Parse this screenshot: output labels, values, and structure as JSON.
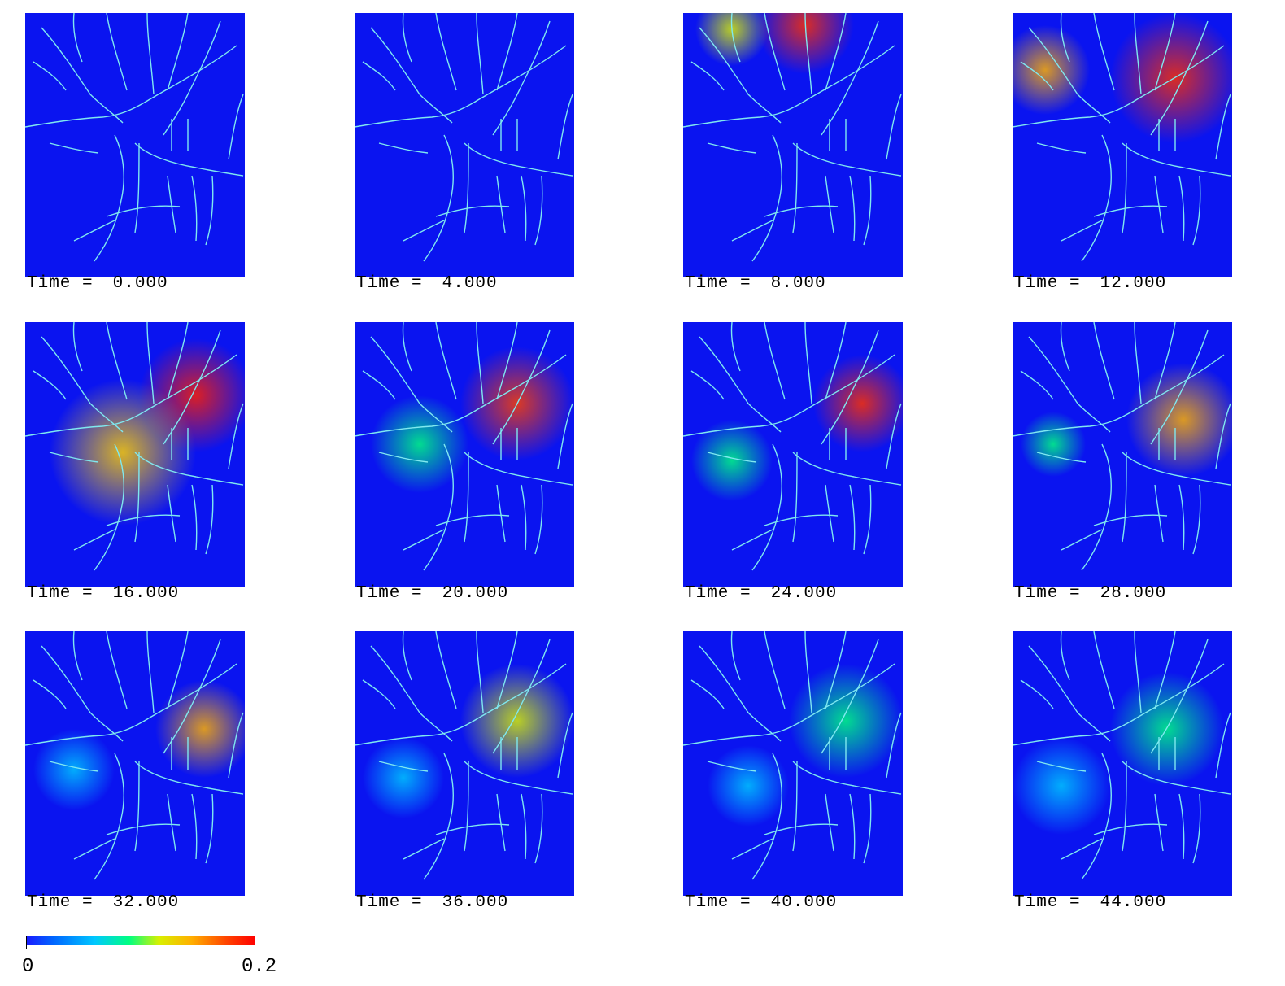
{
  "panels": [
    {
      "caption": "Time =",
      "time": "0.000"
    },
    {
      "caption": "Time =",
      "time": "4.000"
    },
    {
      "caption": "Time =",
      "time": "8.000"
    },
    {
      "caption": "Time =",
      "time": "12.000"
    },
    {
      "caption": "Time =",
      "time": "16.000"
    },
    {
      "caption": "Time =",
      "time": "20.000"
    },
    {
      "caption": "Time =",
      "time": "24.000"
    },
    {
      "caption": "Time =",
      "time": "28.000"
    },
    {
      "caption": "Time =",
      "time": "32.000"
    },
    {
      "caption": "Time =",
      "time": "36.000"
    },
    {
      "caption": "Time =",
      "time": "40.000"
    },
    {
      "caption": "Time =",
      "time": "44.000"
    }
  ],
  "colorbar": {
    "min_label": "0",
    "max_label": "0.2",
    "colors": [
      "#1a1aff",
      "#00c8ff",
      "#00ff80",
      "#d8f000",
      "#ffb000",
      "#ff0000"
    ]
  },
  "colors": {
    "background_field": "#0a14f0",
    "river_lines": "#7fe8f0"
  }
}
